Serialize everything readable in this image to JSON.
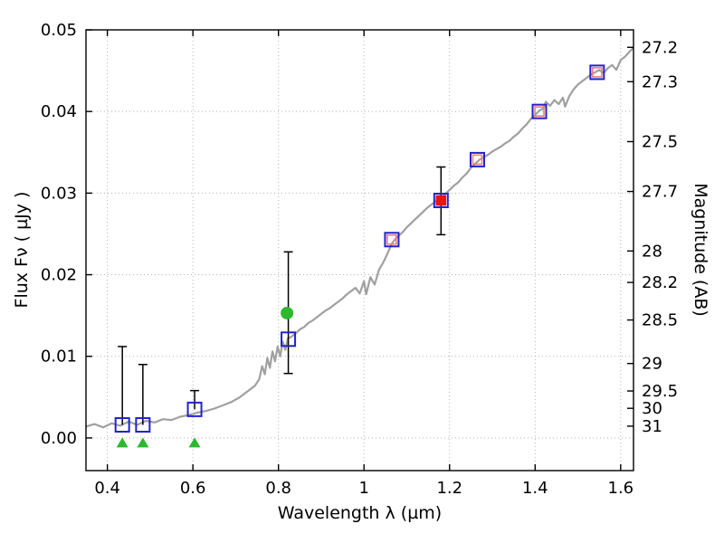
{
  "figure": {
    "background": "#ffffff"
  },
  "chart_data": {
    "type": "line+scatter",
    "title": "",
    "xlabel": "Wavelength  λ (µm)",
    "ylabel_left": "Flux  Fν  ( µJy )",
    "ylabel_right": "Magnitude (AB)",
    "xlim": [
      0.35,
      1.63
    ],
    "ylim": [
      -0.004,
      0.05
    ],
    "grid": true,
    "legend": null,
    "x_ticks": {
      "values": [
        0.4,
        0.6,
        0.8,
        1.0,
        1.2,
        1.4,
        1.6
      ],
      "labels": [
        "0.4",
        "0.6",
        "0.8",
        "1",
        "1.2",
        "1.4",
        "1.6"
      ]
    },
    "y_ticks_left": {
      "values": [
        0.0,
        0.01,
        0.02,
        0.03,
        0.04,
        0.05
      ],
      "labels": [
        "0.00",
        "0.01",
        "0.02",
        "0.03",
        "0.04",
        "0.05"
      ]
    },
    "y_ticks_right": [
      {
        "mag": 27.2,
        "label": "27.2"
      },
      {
        "mag": 27.3,
        "label": "27.3"
      },
      {
        "mag": 27.5,
        "label": "27.5"
      },
      {
        "mag": 27.7,
        "label": "27.7"
      },
      {
        "mag": 28.0,
        "label": "28"
      },
      {
        "mag": 28.2,
        "label": "28.2"
      },
      {
        "mag": 28.5,
        "label": "28.5"
      },
      {
        "mag": 29.0,
        "label": "29"
      },
      {
        "mag": 29.5,
        "label": "29.5"
      },
      {
        "mag": 30.0,
        "label": "30"
      },
      {
        "mag": 31.0,
        "label": "31"
      }
    ],
    "ab_zeropoint_ujy": 23.9,
    "colors": {
      "spectrum": "#a0a0a0",
      "blue": "#2222cc",
      "red": "#ee1111",
      "pink": "#e88080",
      "green": "#2eb82e",
      "grid": "#b3b3b3",
      "axis": "#000000"
    },
    "series": {
      "spectrum": [
        [
          0.35,
          0.0014
        ],
        [
          0.37,
          0.0017
        ],
        [
          0.39,
          0.0013
        ],
        [
          0.41,
          0.0018
        ],
        [
          0.43,
          0.0015
        ],
        [
          0.45,
          0.002
        ],
        [
          0.47,
          0.0016
        ],
        [
          0.49,
          0.0021
        ],
        [
          0.51,
          0.0019
        ],
        [
          0.53,
          0.0023
        ],
        [
          0.55,
          0.0022
        ],
        [
          0.57,
          0.0026
        ],
        [
          0.59,
          0.0028
        ],
        [
          0.61,
          0.0031
        ],
        [
          0.63,
          0.0033
        ],
        [
          0.65,
          0.0036
        ],
        [
          0.67,
          0.004
        ],
        [
          0.69,
          0.0044
        ],
        [
          0.71,
          0.005
        ],
        [
          0.73,
          0.0058
        ],
        [
          0.745,
          0.0064
        ],
        [
          0.755,
          0.0072
        ],
        [
          0.762,
          0.0088
        ],
        [
          0.768,
          0.0078
        ],
        [
          0.774,
          0.0098
        ],
        [
          0.78,
          0.0086
        ],
        [
          0.786,
          0.0106
        ],
        [
          0.792,
          0.0094
        ],
        [
          0.798,
          0.0112
        ],
        [
          0.804,
          0.01
        ],
        [
          0.81,
          0.0118
        ],
        [
          0.816,
          0.0108
        ],
        [
          0.822,
          0.0122
        ],
        [
          0.83,
          0.0124
        ],
        [
          0.84,
          0.0128
        ],
        [
          0.85,
          0.0133
        ],
        [
          0.86,
          0.0136
        ],
        [
          0.87,
          0.0141
        ],
        [
          0.88,
          0.0144
        ],
        [
          0.89,
          0.0148
        ],
        [
          0.9,
          0.0152
        ],
        [
          0.91,
          0.0156
        ],
        [
          0.92,
          0.0159
        ],
        [
          0.93,
          0.0163
        ],
        [
          0.94,
          0.0167
        ],
        [
          0.95,
          0.0171
        ],
        [
          0.96,
          0.0176
        ],
        [
          0.97,
          0.018
        ],
        [
          0.98,
          0.0184
        ],
        [
          0.99,
          0.0177
        ],
        [
          1.0,
          0.0192
        ],
        [
          1.005,
          0.0176
        ],
        [
          1.015,
          0.0197
        ],
        [
          1.025,
          0.0188
        ],
        [
          1.035,
          0.0206
        ],
        [
          1.045,
          0.0215
        ],
        [
          1.055,
          0.0226
        ],
        [
          1.065,
          0.0238
        ],
        [
          1.075,
          0.0245
        ],
        [
          1.09,
          0.0252
        ],
        [
          1.1,
          0.0258
        ],
        [
          1.11,
          0.0263
        ],
        [
          1.12,
          0.0268
        ],
        [
          1.13,
          0.0273
        ],
        [
          1.14,
          0.0278
        ],
        [
          1.15,
          0.0283
        ],
        [
          1.16,
          0.0287
        ],
        [
          1.17,
          0.0291
        ],
        [
          1.18,
          0.0294
        ],
        [
          1.19,
          0.0299
        ],
        [
          1.2,
          0.0304
        ],
        [
          1.21,
          0.0309
        ],
        [
          1.22,
          0.0313
        ],
        [
          1.23,
          0.0319
        ],
        [
          1.24,
          0.0324
        ],
        [
          1.25,
          0.0331
        ],
        [
          1.26,
          0.0336
        ],
        [
          1.27,
          0.0341
        ],
        [
          1.28,
          0.0344
        ],
        [
          1.29,
          0.0347
        ],
        [
          1.3,
          0.0351
        ],
        [
          1.31,
          0.0354
        ],
        [
          1.32,
          0.0357
        ],
        [
          1.33,
          0.0361
        ],
        [
          1.34,
          0.0364
        ],
        [
          1.35,
          0.0369
        ],
        [
          1.36,
          0.0373
        ],
        [
          1.37,
          0.0379
        ],
        [
          1.38,
          0.0384
        ],
        [
          1.39,
          0.0391
        ],
        [
          1.4,
          0.0396
        ],
        [
          1.41,
          0.0401
        ],
        [
          1.42,
          0.0404
        ],
        [
          1.425,
          0.0412
        ],
        [
          1.435,
          0.0407
        ],
        [
          1.445,
          0.0414
        ],
        [
          1.455,
          0.0409
        ],
        [
          1.465,
          0.0417
        ],
        [
          1.47,
          0.0406
        ],
        [
          1.48,
          0.0419
        ],
        [
          1.49,
          0.0427
        ],
        [
          1.5,
          0.0433
        ],
        [
          1.51,
          0.0437
        ],
        [
          1.52,
          0.0441
        ],
        [
          1.53,
          0.0445
        ],
        [
          1.54,
          0.0448
        ],
        [
          1.55,
          0.0451
        ],
        [
          1.56,
          0.0447
        ],
        [
          1.57,
          0.0453
        ],
        [
          1.58,
          0.0457
        ],
        [
          1.59,
          0.0451
        ],
        [
          1.6,
          0.0463
        ],
        [
          1.61,
          0.0467
        ],
        [
          1.62,
          0.0473
        ],
        [
          1.63,
          0.0478
        ]
      ],
      "blue_squares": [
        {
          "x": 0.435,
          "y": 0.0016
        },
        {
          "x": 0.483,
          "y": 0.0016
        },
        {
          "x": 0.604,
          "y": 0.0035
        },
        {
          "x": 0.823,
          "y": 0.0121
        },
        {
          "x": 1.065,
          "y": 0.0243
        },
        {
          "x": 1.18,
          "y": 0.0291
        },
        {
          "x": 1.265,
          "y": 0.0341
        },
        {
          "x": 1.41,
          "y": 0.04
        },
        {
          "x": 1.545,
          "y": 0.0448
        }
      ],
      "red_squares": [
        {
          "x": 1.065,
          "y": 0.0243,
          "filled": false
        },
        {
          "x": 1.18,
          "y": 0.0291,
          "filled": true
        },
        {
          "x": 1.265,
          "y": 0.0341,
          "filled": false
        },
        {
          "x": 1.41,
          "y": 0.04,
          "filled": false
        },
        {
          "x": 1.545,
          "y": 0.0448,
          "filled": false
        }
      ],
      "green_circles": [
        {
          "x": 0.82,
          "y": 0.0153
        }
      ],
      "upper_limits": [
        {
          "x": 0.435,
          "y": -0.0006
        },
        {
          "x": 0.483,
          "y": -0.0006
        },
        {
          "x": 0.604,
          "y": -0.0006
        }
      ],
      "errorbars": [
        {
          "x": 0.435,
          "y": 0.0016,
          "lo": null,
          "hi": 0.0112
        },
        {
          "x": 0.483,
          "y": 0.0016,
          "lo": null,
          "hi": 0.009
        },
        {
          "x": 0.604,
          "y": 0.0035,
          "lo": null,
          "hi": 0.0058
        },
        {
          "x": 0.823,
          "y": 0.0121,
          "lo": 0.0079,
          "hi": 0.0228
        },
        {
          "x": 1.18,
          "y": 0.0291,
          "lo": 0.0249,
          "hi": 0.0332
        }
      ]
    }
  }
}
